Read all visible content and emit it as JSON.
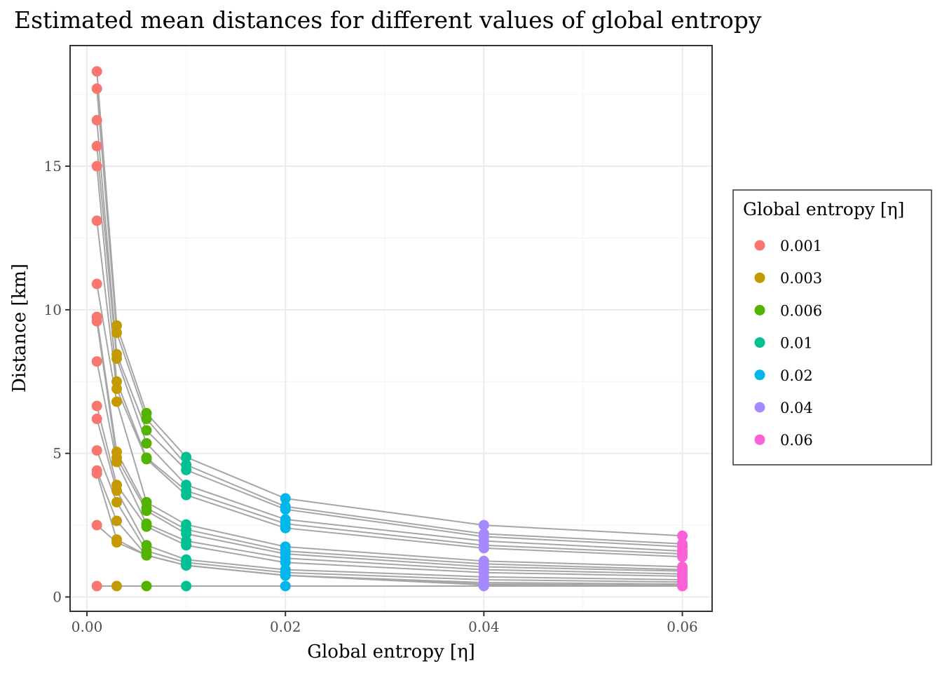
{
  "chart_data": {
    "type": "scatter",
    "title": "Estimated mean distances for different values of global entropy",
    "xlabel": "Global entropy [η]",
    "ylabel": "Distance [km]",
    "xlim": [
      -0.0017,
      0.063
    ],
    "ylim": [
      -0.5,
      19.2
    ],
    "x_ticks": [
      0,
      0.02,
      0.04,
      0.06
    ],
    "x_tick_labels": [
      "0.00",
      "0.02",
      "0.04",
      "0.06"
    ],
    "y_ticks": [
      0,
      5,
      10,
      15
    ],
    "y_tick_labels": [
      "0",
      "5",
      "10",
      "15"
    ],
    "grid": true,
    "legend_position": "right",
    "legend": {
      "title": "Global entropy [η]",
      "entries": [
        {
          "label": "0.001",
          "x": 0.001,
          "color": "#F8766D"
        },
        {
          "label": "0.003",
          "x": 0.003,
          "color": "#C49A00"
        },
        {
          "label": "0.006",
          "x": 0.006,
          "color": "#53B400"
        },
        {
          "label": "0.01",
          "x": 0.01,
          "color": "#00C094"
        },
        {
          "label": "0.02",
          "x": 0.02,
          "color": "#00B6EB"
        },
        {
          "label": "0.04",
          "x": 0.04,
          "color": "#A58AFF"
        },
        {
          "label": "0.06",
          "x": 0.06,
          "color": "#FB61D7"
        }
      ]
    },
    "x": [
      0.001,
      0.003,
      0.006,
      0.01,
      0.02,
      0.04,
      0.06
    ],
    "series": [
      {
        "values": [
          18.3,
          9.45,
          6.4,
          4.87,
          3.43,
          2.5,
          2.13
        ]
      },
      {
        "values": [
          17.7,
          9.2,
          6.2,
          4.6,
          3.15,
          2.2,
          1.85
        ]
      },
      {
        "values": [
          16.6,
          8.45,
          5.8,
          4.42,
          3.05,
          2.1,
          1.75
        ]
      },
      {
        "values": [
          15.7,
          8.3,
          5.35,
          3.9,
          2.7,
          1.95,
          1.6
        ]
      },
      {
        "values": [
          15.0,
          7.5,
          4.85,
          3.7,
          2.55,
          1.8,
          1.5
        ]
      },
      {
        "values": [
          13.1,
          7.25,
          4.8,
          3.55,
          2.4,
          1.7,
          1.4
        ]
      },
      {
        "values": [
          10.9,
          6.8,
          3.3,
          2.52,
          1.75,
          1.25,
          1.05
        ]
      },
      {
        "values": [
          9.75,
          5.05,
          3.1,
          2.35,
          1.6,
          1.15,
          0.95
        ]
      },
      {
        "values": [
          9.6,
          4.85,
          3.0,
          2.2,
          1.5,
          1.05,
          0.9
        ]
      },
      {
        "values": [
          8.2,
          4.7,
          2.55,
          1.95,
          1.35,
          0.95,
          0.8
        ]
      },
      {
        "values": [
          6.65,
          3.9,
          2.45,
          1.8,
          1.2,
          0.85,
          0.72
        ]
      },
      {
        "values": [
          6.2,
          3.7,
          1.8,
          1.3,
          0.95,
          0.7,
          0.6
        ]
      },
      {
        "values": [
          5.1,
          3.3,
          1.6,
          1.2,
          0.85,
          0.6,
          0.52
        ]
      },
      {
        "values": [
          4.4,
          2.65,
          1.45,
          1.1,
          0.75,
          0.5,
          0.45
        ]
      },
      {
        "values": [
          4.3,
          2.0,
          1.45,
          1.1,
          0.75,
          0.45,
          0.4
        ]
      },
      {
        "values": [
          2.5,
          1.9,
          1.45,
          1.1,
          0.75,
          0.42,
          0.38
        ]
      },
      {
        "values": [
          0.38,
          0.38,
          0.38,
          0.38,
          0.38,
          0.38,
          0.38
        ]
      }
    ],
    "line_color": "#a6a6a6"
  }
}
